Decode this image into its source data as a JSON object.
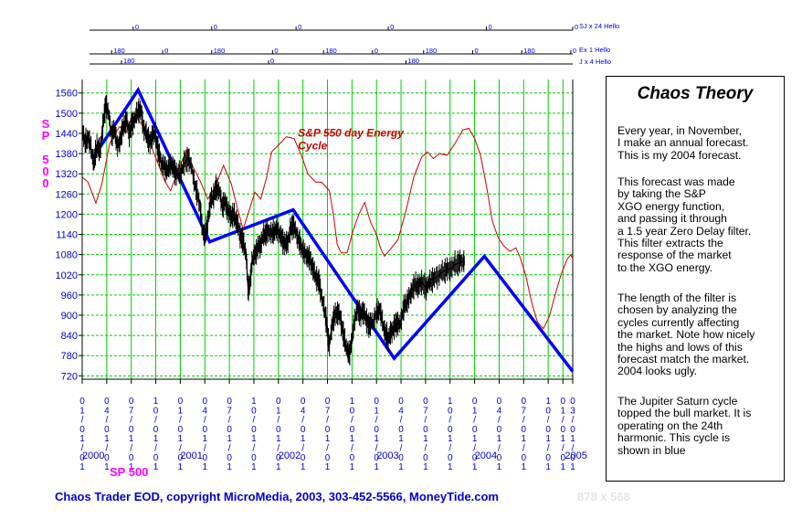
{
  "panel": {
    "title": "Chaos Theory",
    "paragraphs": [
      [
        "Every year, in November,",
        "I make an annual forecast.",
        "This is my 2004 forecast."
      ],
      [
        "This forecast was made",
        "by taking the S&P",
        "XGO energy function,",
        "and passing it through",
        "a 1.5 year Zero Delay filter.",
        "This filter extracts the",
        "response of the market",
        "to the XGO energy."
      ],
      [
        "The length of the filter is",
        "chosen by analyzing the",
        "cycles currently affecting",
        "the market. Note how nicely",
        "the highs and lows of this",
        "forecast match the market.",
        "2004 looks ugly."
      ],
      [
        "The Jupiter Saturn cycle",
        "topped the bull market. It is",
        "operating on the 24th",
        "harmonic. This cycle is",
        "shown in blue"
      ]
    ]
  },
  "footer": {
    "copyright": "Chaos Trader EOD, copyright MicroMedia, 2003, 303-452-5566, MoneyTide.com",
    "size_text": "878 x 568"
  },
  "bottom_label": "SP 500",
  "colors": {
    "price": "#000000",
    "energy": "#cc0000",
    "cycle": "#0000ff",
    "grid_vertical": "#00cc00",
    "grid_horizontal": "#00cc00",
    "axis_text": "#0000cc",
    "symbol": "#ff00ff"
  },
  "chart_data": {
    "type": "line",
    "title": "SP 500",
    "ylabel": "SP 500",
    "ylim": [
      710,
      1600
    ],
    "yticks": [
      720,
      780,
      840,
      900,
      960,
      1020,
      1080,
      1140,
      1200,
      1260,
      1320,
      1380,
      1440,
      1500,
      1560
    ],
    "xlim": [
      2000.0,
      2005.0
    ],
    "x_date_ticks": [
      {
        "label": "01/01/01"
      },
      {
        "label": "04/01/01"
      },
      {
        "label": "07/01/01"
      },
      {
        "label": "10/01/01"
      },
      {
        "label": "01/01/01"
      },
      {
        "label": "04/01/01"
      },
      {
        "label": "07/01/01"
      },
      {
        "label": "10/01/01"
      },
      {
        "label": "01/01/01"
      },
      {
        "label": "04/01/01"
      },
      {
        "label": "07/01/01"
      },
      {
        "label": "10/01/01"
      },
      {
        "label": "01/01/01"
      },
      {
        "label": "04/01/01"
      },
      {
        "label": "07/01/01"
      },
      {
        "label": "10/01/01"
      },
      {
        "label": "01/01/01"
      },
      {
        "label": "04/01/01"
      },
      {
        "label": "07/01/01"
      },
      {
        "label": "10/01/01"
      },
      {
        "label": "01/01/01"
      },
      {
        "label": "03/01/01"
      }
    ],
    "x_year_labels": [
      {
        "label": "2000",
        "x": 2000.0
      },
      {
        "label": "2001",
        "x": 2001.0
      },
      {
        "label": "2002",
        "x": 2002.0
      },
      {
        "label": "2003",
        "x": 2003.0
      },
      {
        "label": "2004",
        "x": 2004.0
      },
      {
        "label": "2005",
        "x": 2004.92
      }
    ],
    "annotation": {
      "text": "S&P 550 day Energy Cycle",
      "line1": "S&P 550 day Energy",
      "line2": "Cycle",
      "x": 2002.2,
      "y": 1430
    },
    "phase_rows": [
      {
        "label": "SJ x 24 Hello",
        "marks": [
          {
            "text": "0",
            "x": 2000.52
          },
          {
            "text": "0",
            "x": 2001.32
          },
          {
            "text": "0",
            "x": 2002.18
          },
          {
            "text": "0",
            "x": 2003.12
          },
          {
            "text": "0",
            "x": 2004.12
          },
          {
            "text": "0",
            "x": 2005.0
          }
        ]
      },
      {
        "label": "Ex 1 Hello",
        "marks": [
          {
            "text": "180",
            "x": 2000.3
          },
          {
            "text": "0",
            "x": 2000.82
          },
          {
            "text": "180",
            "x": 2001.32
          },
          {
            "text": "0",
            "x": 2001.94
          },
          {
            "text": "180",
            "x": 2002.46
          },
          {
            "text": "0",
            "x": 2002.96
          },
          {
            "text": "180",
            "x": 2003.48
          },
          {
            "text": "0",
            "x": 2003.98
          },
          {
            "text": "180",
            "x": 2004.48
          },
          {
            "text": "0",
            "x": 2004.98
          }
        ]
      },
      {
        "label": "J x 4 Hello",
        "marks": [
          {
            "text": "180",
            "x": 2000.4
          },
          {
            "text": "0",
            "x": 2001.9
          },
          {
            "text": "180",
            "x": 2003.3
          }
        ]
      }
    ],
    "series": [
      {
        "name": "Jupiter Saturn cycle (24th harmonic)",
        "kind": "line",
        "points": [
          [
            2000.1,
            1363
          ],
          [
            2000.57,
            1569
          ],
          [
            2001.3,
            1118
          ],
          [
            2002.15,
            1213
          ],
          [
            2003.18,
            772
          ],
          [
            2004.1,
            1075
          ],
          [
            2005.0,
            733
          ]
        ]
      },
      {
        "name": "S&P 550 day Energy Cycle",
        "kind": "line",
        "points": [
          [
            2000.0,
            1310
          ],
          [
            2000.06,
            1295
          ],
          [
            2000.14,
            1233
          ],
          [
            2000.2,
            1290
          ],
          [
            2000.28,
            1410
          ],
          [
            2000.38,
            1460
          ],
          [
            2000.45,
            1445
          ],
          [
            2000.52,
            1500
          ],
          [
            2000.6,
            1470
          ],
          [
            2000.68,
            1420
          ],
          [
            2000.76,
            1360
          ],
          [
            2000.84,
            1300
          ],
          [
            2000.9,
            1270
          ],
          [
            2000.98,
            1330
          ],
          [
            2001.06,
            1390
          ],
          [
            2001.13,
            1340
          ],
          [
            2001.2,
            1300
          ],
          [
            2001.28,
            1245
          ],
          [
            2001.36,
            1285
          ],
          [
            2001.44,
            1345
          ],
          [
            2001.52,
            1290
          ],
          [
            2001.58,
            1220
          ],
          [
            2001.64,
            1155
          ],
          [
            2001.7,
            1210
          ],
          [
            2001.76,
            1265
          ],
          [
            2001.82,
            1245
          ],
          [
            2001.88,
            1310
          ],
          [
            2001.93,
            1385
          ],
          [
            2002.0,
            1405
          ],
          [
            2002.08,
            1430
          ],
          [
            2002.16,
            1425
          ],
          [
            2002.24,
            1370
          ],
          [
            2002.3,
            1320
          ],
          [
            2002.38,
            1295
          ],
          [
            2002.44,
            1295
          ],
          [
            2002.52,
            1270
          ],
          [
            2002.56,
            1200
          ],
          [
            2002.6,
            1110
          ],
          [
            2002.64,
            1085
          ],
          [
            2002.7,
            1085
          ],
          [
            2002.76,
            1150
          ],
          [
            2002.82,
            1200
          ],
          [
            2002.88,
            1235
          ],
          [
            2002.94,
            1175
          ],
          [
            2003.0,
            1140
          ],
          [
            2003.04,
            1100
          ],
          [
            2003.08,
            1075
          ],
          [
            2003.14,
            1095
          ],
          [
            2003.22,
            1125
          ],
          [
            2003.3,
            1210
          ],
          [
            2003.38,
            1310
          ],
          [
            2003.46,
            1370
          ],
          [
            2003.52,
            1385
          ],
          [
            2003.58,
            1365
          ],
          [
            2003.64,
            1380
          ],
          [
            2003.72,
            1375
          ],
          [
            2003.8,
            1410
          ],
          [
            2003.88,
            1450
          ],
          [
            2003.94,
            1455
          ],
          [
            2004.0,
            1425
          ],
          [
            2004.06,
            1375
          ],
          [
            2004.12,
            1285
          ],
          [
            2004.18,
            1180
          ],
          [
            2004.24,
            1130
          ],
          [
            2004.3,
            1105
          ],
          [
            2004.36,
            1090
          ],
          [
            2004.42,
            1100
          ],
          [
            2004.46,
            1075
          ],
          [
            2004.52,
            1020
          ],
          [
            2004.58,
            940
          ],
          [
            2004.64,
            880
          ],
          [
            2004.7,
            860
          ],
          [
            2004.76,
            895
          ],
          [
            2004.82,
            960
          ],
          [
            2004.88,
            1020
          ],
          [
            2004.94,
            1065
          ],
          [
            2004.98,
            1080
          ],
          [
            2005.0,
            1068
          ]
        ]
      },
      {
        "name": "SP 500 daily",
        "kind": "price",
        "points": [
          [
            2000.0,
            1455
          ],
          [
            2000.03,
            1410
          ],
          [
            2000.06,
            1430
          ],
          [
            2000.09,
            1395
          ],
          [
            2000.12,
            1350
          ],
          [
            2000.15,
            1405
          ],
          [
            2000.18,
            1385
          ],
          [
            2000.21,
            1460
          ],
          [
            2000.24,
            1530
          ],
          [
            2000.27,
            1495
          ],
          [
            2000.3,
            1435
          ],
          [
            2000.33,
            1450
          ],
          [
            2000.36,
            1400
          ],
          [
            2000.39,
            1425
          ],
          [
            2000.42,
            1460
          ],
          [
            2000.45,
            1480
          ],
          [
            2000.48,
            1440
          ],
          [
            2000.51,
            1470
          ],
          [
            2000.54,
            1485
          ],
          [
            2000.57,
            1510
          ],
          [
            2000.6,
            1505
          ],
          [
            2000.63,
            1450
          ],
          [
            2000.66,
            1435
          ],
          [
            2000.69,
            1410
          ],
          [
            2000.72,
            1440
          ],
          [
            2000.75,
            1430
          ],
          [
            2000.78,
            1380
          ],
          [
            2000.81,
            1350
          ],
          [
            2000.84,
            1340
          ],
          [
            2000.87,
            1330
          ],
          [
            2000.9,
            1350
          ],
          [
            2000.93,
            1335
          ],
          [
            2000.96,
            1320
          ],
          [
            2001.0,
            1320
          ],
          [
            2001.04,
            1350
          ],
          [
            2001.08,
            1370
          ],
          [
            2001.12,
            1330
          ],
          [
            2001.16,
            1270
          ],
          [
            2001.2,
            1230
          ],
          [
            2001.22,
            1165
          ],
          [
            2001.25,
            1130
          ],
          [
            2001.28,
            1180
          ],
          [
            2001.31,
            1240
          ],
          [
            2001.34,
            1255
          ],
          [
            2001.37,
            1280
          ],
          [
            2001.4,
            1265
          ],
          [
            2001.43,
            1225
          ],
          [
            2001.46,
            1235
          ],
          [
            2001.49,
            1205
          ],
          [
            2001.52,
            1195
          ],
          [
            2001.55,
            1195
          ],
          [
            2001.58,
            1175
          ],
          [
            2001.61,
            1140
          ],
          [
            2001.64,
            1115
          ],
          [
            2001.67,
            1085
          ],
          [
            2001.69,
            980
          ],
          [
            2001.71,
            990
          ],
          [
            2001.73,
            1060
          ],
          [
            2001.76,
            1080
          ],
          [
            2001.79,
            1100
          ],
          [
            2001.82,
            1110
          ],
          [
            2001.85,
            1140
          ],
          [
            2001.88,
            1145
          ],
          [
            2001.91,
            1150
          ],
          [
            2001.94,
            1140
          ],
          [
            2001.97,
            1155
          ],
          [
            2002.0,
            1150
          ],
          [
            2002.03,
            1130
          ],
          [
            2002.06,
            1115
          ],
          [
            2002.09,
            1110
          ],
          [
            2002.12,
            1150
          ],
          [
            2002.15,
            1170
          ],
          [
            2002.18,
            1145
          ],
          [
            2002.21,
            1120
          ],
          [
            2002.24,
            1100
          ],
          [
            2002.27,
            1080
          ],
          [
            2002.3,
            1075
          ],
          [
            2002.33,
            1060
          ],
          [
            2002.36,
            1030
          ],
          [
            2002.39,
            1010
          ],
          [
            2002.42,
            990
          ],
          [
            2002.45,
            940
          ],
          [
            2002.48,
            900
          ],
          [
            2002.5,
            850
          ],
          [
            2002.52,
            810
          ],
          [
            2002.55,
            880
          ],
          [
            2002.58,
            900
          ],
          [
            2002.61,
            910
          ],
          [
            2002.64,
            880
          ],
          [
            2002.67,
            830
          ],
          [
            2002.7,
            800
          ],
          [
            2002.72,
            780
          ],
          [
            2002.75,
            830
          ],
          [
            2002.78,
            890
          ],
          [
            2002.81,
            920
          ],
          [
            2002.84,
            900
          ],
          [
            2002.87,
            915
          ],
          [
            2002.9,
            880
          ],
          [
            2002.93,
            870
          ],
          [
            2002.96,
            880
          ],
          [
            2003.0,
            905
          ],
          [
            2003.03,
            920
          ],
          [
            2003.06,
            880
          ],
          [
            2003.09,
            845
          ],
          [
            2003.12,
            830
          ],
          [
            2003.15,
            850
          ],
          [
            2003.18,
            865
          ],
          [
            2003.21,
            880
          ],
          [
            2003.24,
            870
          ],
          [
            2003.27,
            915
          ],
          [
            2003.3,
            935
          ],
          [
            2003.33,
            950
          ],
          [
            2003.36,
            975
          ],
          [
            2003.4,
            990
          ],
          [
            2003.43,
            985
          ],
          [
            2003.46,
            1000
          ],
          [
            2003.5,
            980
          ],
          [
            2003.53,
            995
          ],
          [
            2003.56,
            1005
          ],
          [
            2003.6,
            1010
          ],
          [
            2003.64,
            1020
          ],
          [
            2003.68,
            1030
          ],
          [
            2003.72,
            1035
          ],
          [
            2003.76,
            1040
          ],
          [
            2003.8,
            1050
          ],
          [
            2003.84,
            1055
          ],
          [
            2003.88,
            1060
          ],
          [
            2003.9,
            1058
          ]
        ]
      }
    ]
  }
}
